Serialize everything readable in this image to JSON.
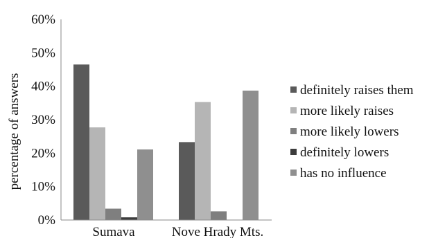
{
  "chart_data": {
    "type": "bar",
    "categories": [
      "Sumava",
      "Nove Hrady Mts."
    ],
    "series": [
      {
        "name": "definitely raises them",
        "values": [
          46.5,
          23.3
        ],
        "color": "#5a5a5a"
      },
      {
        "name": "more likely raises",
        "values": [
          27.7,
          35.3
        ],
        "color": "#b5b5b5"
      },
      {
        "name": "more likely lowers",
        "values": [
          3.4,
          2.6
        ],
        "color": "#7f7f7f"
      },
      {
        "name": "definitely lowers",
        "values": [
          0.8,
          0
        ],
        "color": "#3c3c3c"
      },
      {
        "name": "has no influence",
        "values": [
          21.1,
          38.7
        ],
        "color": "#8f8f8f"
      }
    ],
    "ylabel": "percentage of answers",
    "xlabel": "",
    "ylim": [
      0,
      60
    ],
    "yticks": [
      "0%",
      "10%",
      "20%",
      "30%",
      "40%",
      "50%",
      "60%"
    ],
    "grid": false,
    "legend": "right"
  }
}
